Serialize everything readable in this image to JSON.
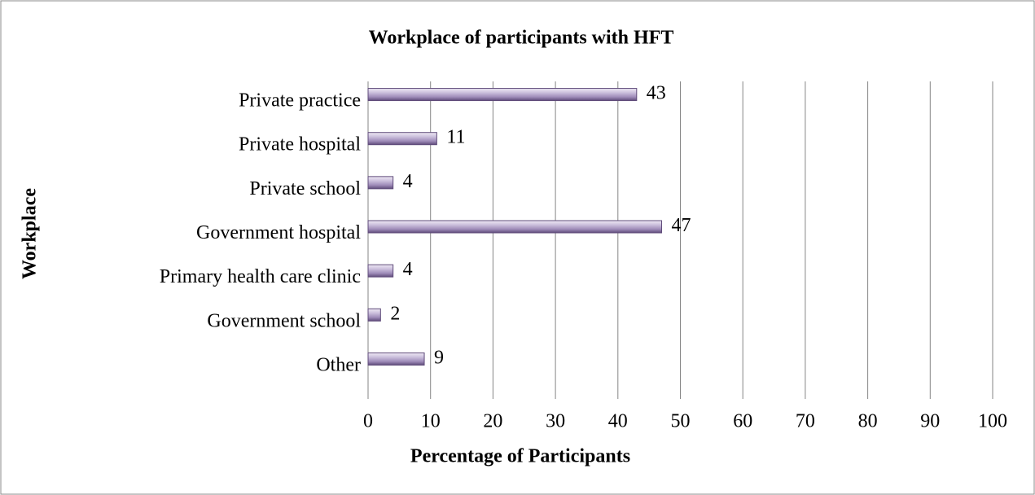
{
  "chart_data": {
    "type": "bar",
    "orientation": "horizontal",
    "title": "Workplace of participants with HFT",
    "xlabel": "Percentage of Participants",
    "ylabel": "Workplace",
    "categories": [
      "Private practice",
      "Private hospital",
      "Private school",
      "Government hospital",
      "Primary health care clinic",
      "Government school",
      "Other"
    ],
    "values": [
      43,
      11,
      4,
      47,
      4,
      2,
      9
    ],
    "color": "#b3a2c7",
    "xlim": [
      0,
      100
    ],
    "xticks": [
      0,
      10,
      20,
      30,
      40,
      50,
      60,
      70,
      80,
      90,
      100
    ],
    "grid": true
  }
}
